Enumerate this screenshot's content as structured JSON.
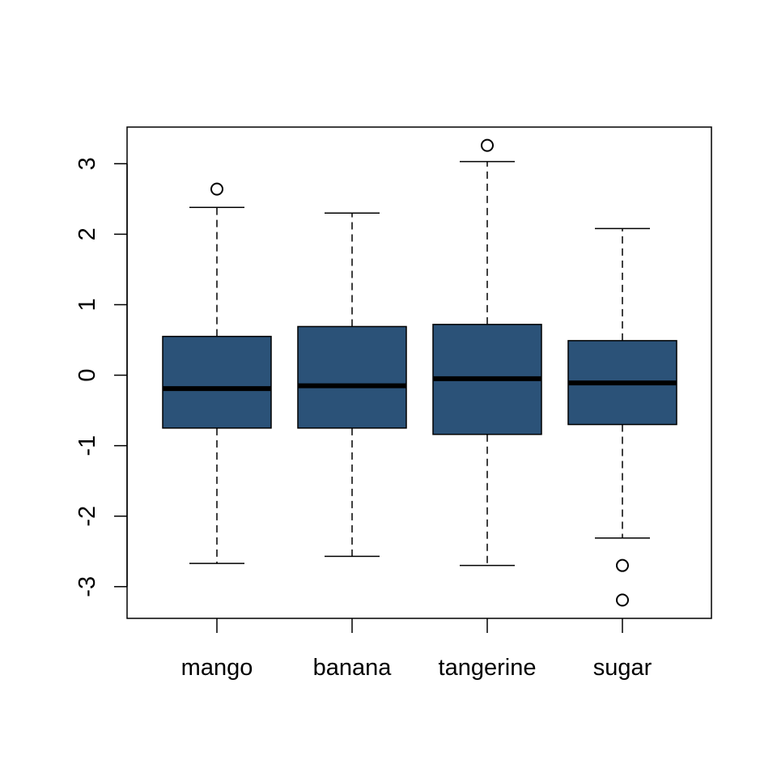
{
  "chart_data": {
    "type": "boxplot",
    "title": "",
    "xlabel": "",
    "ylabel": "",
    "categories": [
      "mango",
      "banana",
      "tangerine",
      "sugar"
    ],
    "ylim": [
      -3.45,
      3.52
    ],
    "yticks": [
      -3,
      -2,
      -1,
      0,
      1,
      2,
      3
    ],
    "ytick_labels": [
      "-3",
      "-2",
      "-1",
      "0",
      "1",
      "2",
      "3"
    ],
    "box_color": "#2b5278",
    "grid": false,
    "series": [
      {
        "category": "mango",
        "whisker_low": -2.67,
        "q1": -0.75,
        "median": -0.19,
        "q3": 0.55,
        "whisker_high": 2.38,
        "outliers": [
          2.64
        ]
      },
      {
        "category": "banana",
        "whisker_low": -2.57,
        "q1": -0.75,
        "median": -0.15,
        "q3": 0.69,
        "whisker_high": 2.3,
        "outliers": []
      },
      {
        "category": "tangerine",
        "whisker_low": -2.7,
        "q1": -0.84,
        "median": -0.05,
        "q3": 0.72,
        "whisker_high": 3.03,
        "outliers": [
          3.26
        ]
      },
      {
        "category": "sugar",
        "whisker_low": -2.31,
        "q1": -0.7,
        "median": -0.11,
        "q3": 0.49,
        "whisker_high": 2.08,
        "outliers": [
          -2.7,
          -3.19
        ]
      }
    ]
  }
}
